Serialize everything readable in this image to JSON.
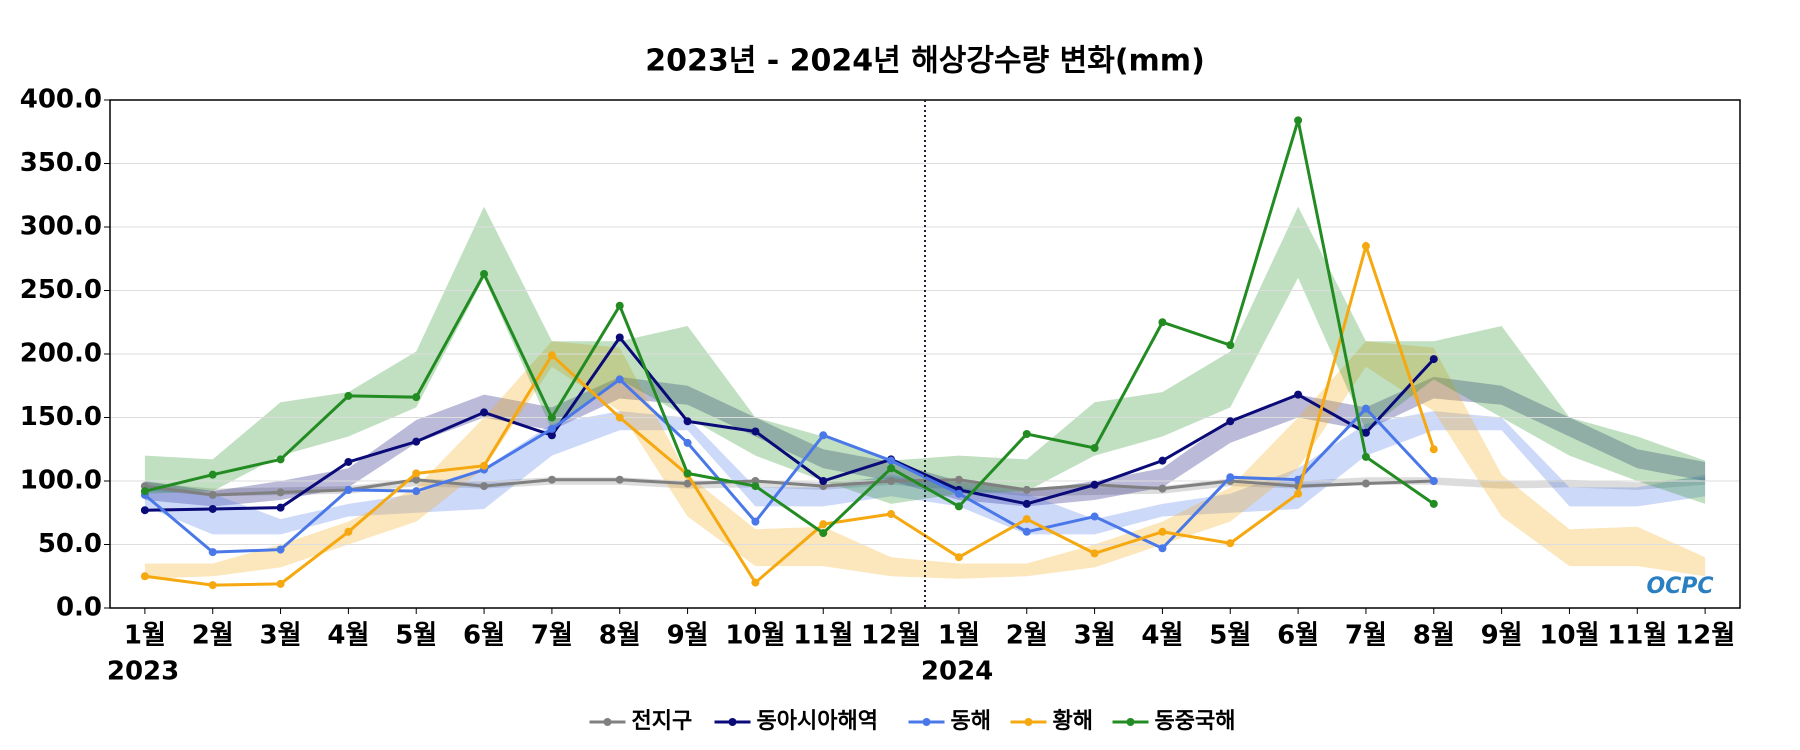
{
  "chart_data": {
    "type": "line",
    "title": "2023년 - 2024년 해상강수량 변화(mm)",
    "categories": [
      "1월",
      "2월",
      "3월",
      "4월",
      "5월",
      "6월",
      "7월",
      "8월",
      "9월",
      "10월",
      "11월",
      "12월",
      "1월",
      "2월",
      "3월",
      "4월",
      "5월",
      "6월",
      "7월",
      "8월",
      "9월",
      "10월",
      "11월",
      "12월"
    ],
    "year_labels": [
      "2023",
      "2024"
    ],
    "logo": "OCPC",
    "ylim": [
      0,
      400
    ],
    "yticks": [
      {
        "value": 0,
        "label": "0.0"
      },
      {
        "value": 50,
        "label": "50.0"
      },
      {
        "value": 100,
        "label": "100.0"
      },
      {
        "value": 150,
        "label": "150.0"
      },
      {
        "value": 200,
        "label": "200.0"
      },
      {
        "value": 250,
        "label": "250.0"
      },
      {
        "value": 300,
        "label": "300.0"
      },
      {
        "value": 350,
        "label": "350.0"
      },
      {
        "value": 400,
        "label": "400.0"
      }
    ],
    "grid": true,
    "series": [
      {
        "name": "전지구",
        "color": "#808080",
        "values": [
          96,
          89,
          91,
          93,
          101,
          96,
          101,
          101,
          98,
          100,
          96,
          100,
          101,
          93,
          97,
          94,
          100,
          96,
          98,
          100,
          null,
          null,
          null,
          null
        ],
        "band_low": [
          93,
          88,
          89,
          90,
          96,
          94,
          97,
          97,
          94,
          95,
          93,
          97,
          93,
          88,
          89,
          90,
          96,
          94,
          97,
          97,
          94,
          95,
          93,
          97
        ],
        "band_high": [
          99,
          94,
          95,
          96,
          102,
          100,
          103,
          103,
          100,
          101,
          99,
          103,
          99,
          94,
          95,
          96,
          102,
          100,
          103,
          103,
          100,
          101,
          99,
          103
        ]
      },
      {
        "name": "동아시아해역",
        "color": "#0a0a78",
        "values": [
          77,
          78,
          79,
          115,
          131,
          154,
          136,
          213,
          147,
          139,
          100,
          117,
          93,
          82,
          97,
          116,
          147,
          168,
          138,
          196,
          null,
          null,
          null,
          null
        ],
        "band_low": [
          85,
          80,
          85,
          95,
          130,
          150,
          140,
          165,
          160,
          135,
          110,
          100,
          85,
          80,
          85,
          95,
          130,
          150,
          140,
          165,
          160,
          135,
          110,
          100
        ],
        "band_high": [
          100,
          92,
          100,
          110,
          148,
          168,
          158,
          182,
          175,
          150,
          125,
          115,
          100,
          92,
          100,
          110,
          148,
          168,
          158,
          182,
          175,
          150,
          125,
          115
        ]
      },
      {
        "name": "동해",
        "color": "#4a78e8",
        "values": [
          89,
          44,
          46,
          93,
          92,
          109,
          141,
          180,
          130,
          68,
          136,
          116,
          90,
          60,
          72,
          47,
          103,
          101,
          157,
          100,
          null,
          null,
          null,
          null
        ],
        "band_low": [
          80,
          58,
          58,
          72,
          75,
          78,
          120,
          140,
          140,
          80,
          80,
          88,
          80,
          58,
          58,
          72,
          75,
          78,
          120,
          140,
          140,
          80,
          80,
          88
        ],
        "band_high": [
          95,
          90,
          70,
          82,
          90,
          110,
          145,
          155,
          150,
          95,
          95,
          105,
          95,
          90,
          70,
          82,
          90,
          110,
          145,
          155,
          150,
          95,
          95,
          105
        ]
      },
      {
        "name": "황해",
        "color": "#f5a810",
        "values": [
          25,
          18,
          19,
          60,
          106,
          112,
          199,
          150,
          105,
          20,
          66,
          74,
          40,
          70,
          43,
          60,
          51,
          90,
          285,
          125,
          null,
          null,
          null,
          null
        ],
        "band_low": [
          23,
          25,
          32,
          50,
          68,
          110,
          190,
          155,
          72,
          33,
          33,
          25,
          23,
          25,
          32,
          50,
          68,
          110,
          190,
          155,
          72,
          33,
          33,
          25
        ],
        "band_high": [
          35,
          35,
          50,
          68,
          95,
          150,
          210,
          205,
          105,
          62,
          64,
          40,
          35,
          35,
          50,
          68,
          95,
          150,
          210,
          205,
          105,
          62,
          64,
          40
        ]
      },
      {
        "name": "동중국해",
        "color": "#228b22",
        "values": [
          92,
          105,
          117,
          167,
          166,
          263,
          150,
          238,
          106,
          96,
          59,
          110,
          80,
          137,
          126,
          225,
          207,
          384,
          119,
          82,
          null,
          null,
          null,
          null
        ],
        "band_low": [
          90,
          92,
          120,
          135,
          158,
          260,
          140,
          180,
          150,
          120,
          100,
          82,
          90,
          92,
          120,
          135,
          158,
          260,
          140,
          180,
          150,
          120,
          100,
          82
        ],
        "band_high": [
          120,
          117,
          162,
          170,
          202,
          316,
          210,
          210,
          222,
          150,
          135,
          116,
          120,
          117,
          162,
          170,
          202,
          316,
          210,
          210,
          222,
          150,
          135,
          116
        ]
      }
    ]
  }
}
